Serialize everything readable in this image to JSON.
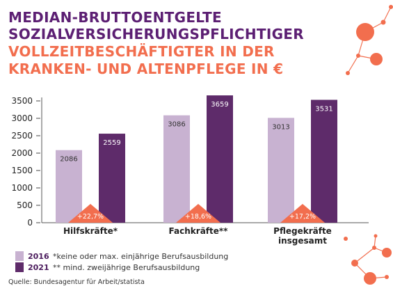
{
  "title": {
    "line1": "MEDIAN-BRUTTOENTGELTE",
    "line2": "SOZIALVERSICHERUNGSPFLICHTIGER",
    "line3": "VOLLZEITBESCHÄFTIGTER IN DER",
    "line4": "KRANKEN- UND ALTENPFLEGE IN €"
  },
  "colors": {
    "title_dark": "#5c1f73",
    "title_orange": "#f26e4e",
    "bar_2016": "#c8b2d1",
    "bar_2021": "#5e2b6a",
    "triangle": "#f26e4e",
    "deco": "#f26e4e"
  },
  "legend": {
    "items": [
      {
        "label": "2016",
        "note": "*keine oder max. einjährige Berufsausbildung"
      },
      {
        "label": "2021",
        "note": "** mind. zweijährige Berufsausbildung"
      }
    ]
  },
  "source": "Quelle: Bundesagentur für Arbeit/statista",
  "chart_data": {
    "type": "bar",
    "categories": [
      "Hilfskräfte*",
      "Fachkräfte**",
      "Pflegekräfte\ninsgesamt"
    ],
    "series": [
      {
        "name": "2016",
        "values": [
          2086,
          3086,
          3013
        ]
      },
      {
        "name": "2021",
        "values": [
          2559,
          3659,
          3531
        ]
      }
    ],
    "changes": [
      "+22,7%",
      "+18,6%",
      "+17,2%"
    ],
    "yticks": [
      0,
      500,
      1000,
      1500,
      2000,
      2500,
      3000,
      3500
    ],
    "ylim": [
      0,
      3600
    ],
    "grid": false,
    "legend_position": "bottom-left"
  }
}
